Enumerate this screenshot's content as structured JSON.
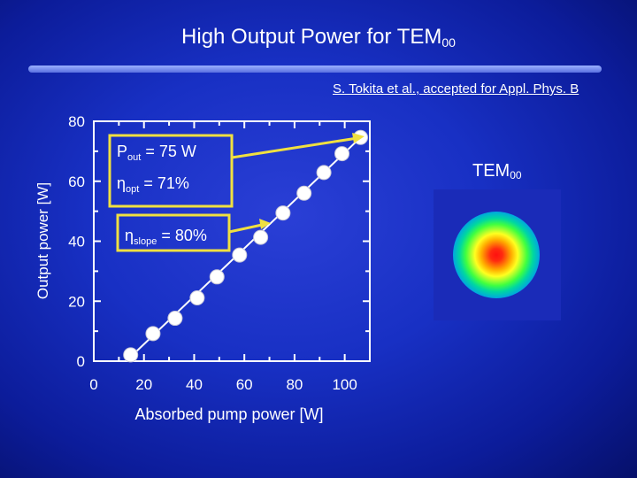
{
  "header": {
    "title_main": "High Output Power for TEM",
    "title_sub": "00",
    "reference": "S. Tokita et al., accepted for Appl. Phys. B"
  },
  "annotations": {
    "pout_label": "P",
    "pout_sub": "out",
    "pout_value": " = 75 W",
    "eta_symbol": "η",
    "opt_sub": "opt",
    "opt_value": " = 71%",
    "slope_sub": "slope",
    "slope_value": " = 80%"
  },
  "beam": {
    "label_main": "TEM",
    "label_sub": "00"
  },
  "colors": {
    "background": "#1830c4",
    "data_points": "#ffffff",
    "fit_line": "#ffffff",
    "annotation_box": "#f0e040",
    "arrows": "#f0e040"
  },
  "chart_data": {
    "type": "scatter",
    "title": "",
    "xlabel": "Absorbed pump power [W]",
    "ylabel": "Output power [W]",
    "xlim": [
      0,
      110
    ],
    "ylim": [
      0,
      80
    ],
    "xticks": [
      "0",
      "20",
      "40",
      "60",
      "80",
      "100"
    ],
    "yticks": [
      "0",
      "20",
      "40",
      "60",
      "80"
    ],
    "grid": false,
    "series": [
      {
        "x": [
          14.7,
          23.6,
          32.4,
          41.2,
          49.1,
          58.1,
          66.5,
          75.4,
          83.8,
          91.7,
          98.9,
          106.3
        ],
        "y": [
          2.1,
          9.2,
          14.3,
          21.1,
          28.1,
          35.4,
          41.3,
          49.4,
          56.0,
          62.9,
          69.2,
          74.6
        ]
      }
    ],
    "fit_line": {
      "x": [
        12.9,
        106.3
      ],
      "y": [
        0,
        74.6
      ]
    }
  }
}
